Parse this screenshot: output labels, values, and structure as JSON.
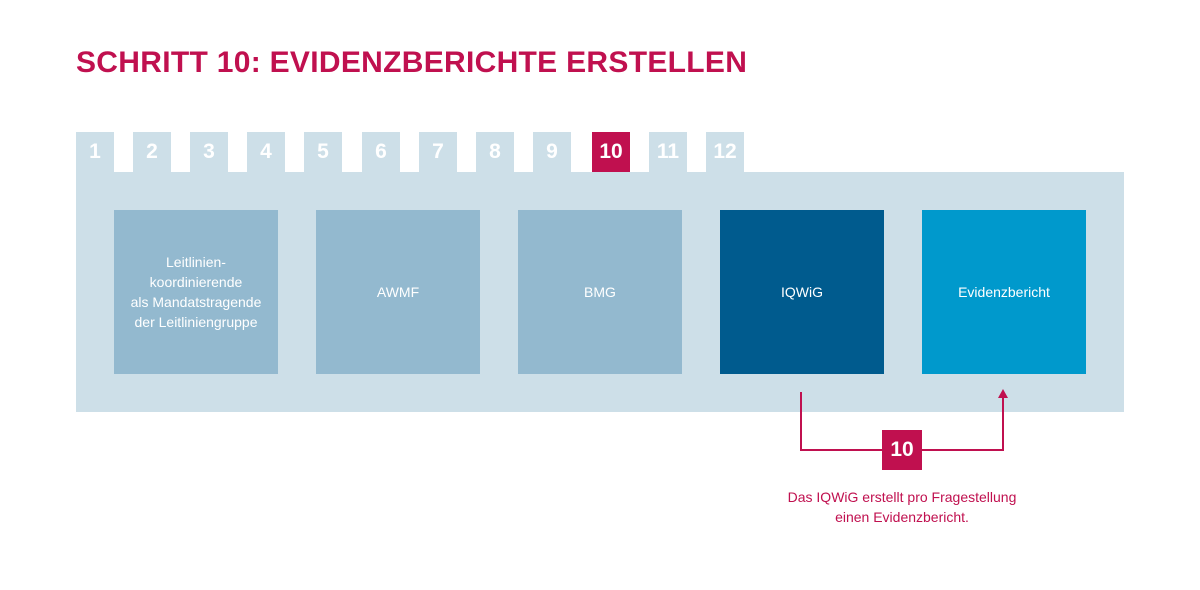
{
  "title": "SCHRITT 10: EVIDENZBERICHTE ERSTELLEN",
  "steps": [
    "1",
    "2",
    "3",
    "4",
    "5",
    "6",
    "7",
    "8",
    "9",
    "10",
    "11",
    "12"
  ],
  "active_step": "10",
  "boxes": [
    {
      "label": "Leitlinien-\nkoordinierende\nals Mandatstragende\nder Leitliniengruppe",
      "color": "#93b9cf"
    },
    {
      "label": "AWMF",
      "color": "#93b9cf"
    },
    {
      "label": "BMG",
      "color": "#93b9cf"
    },
    {
      "label": "IQWiG",
      "color": "#005b8e"
    },
    {
      "label": "Evidenzbericht",
      "color": "#0099cc"
    }
  ],
  "flow": {
    "step_label": "10",
    "caption": "Das IQWiG erstellt pro Fragestellung\neinen Evidenzbericht."
  },
  "colors": {
    "accent": "#c0104f",
    "panel": "#cddfe8",
    "tab": "#cddfe8"
  }
}
